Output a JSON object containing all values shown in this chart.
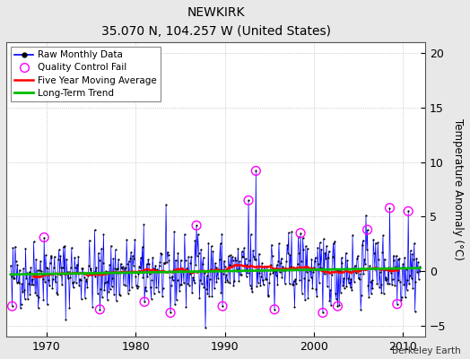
{
  "title": "NEWKIRK",
  "subtitle": "35.070 N, 104.257 W (United States)",
  "credit": "Berkeley Earth",
  "ylabel": "Temperature Anomaly (°C)",
  "xlim": [
    1965.5,
    2012.5
  ],
  "ylim": [
    -6,
    21
  ],
  "yticks": [
    -5,
    0,
    5,
    10,
    15,
    20
  ],
  "xticks": [
    1970,
    1980,
    1990,
    2000,
    2010
  ],
  "raw_line_color": "#0000ff",
  "raw_dot_color": "#000000",
  "moving_avg_color": "#ff0000",
  "trend_color": "#00bb00",
  "qc_fail_color": "#ff00ff",
  "plot_bg_color": "#ffffff",
  "fig_bg_color": "#e8e8e8",
  "seed": 42,
  "n_months": 552,
  "start_year": 1966.0,
  "noise_std": 1.6,
  "moving_avg_window": 60
}
